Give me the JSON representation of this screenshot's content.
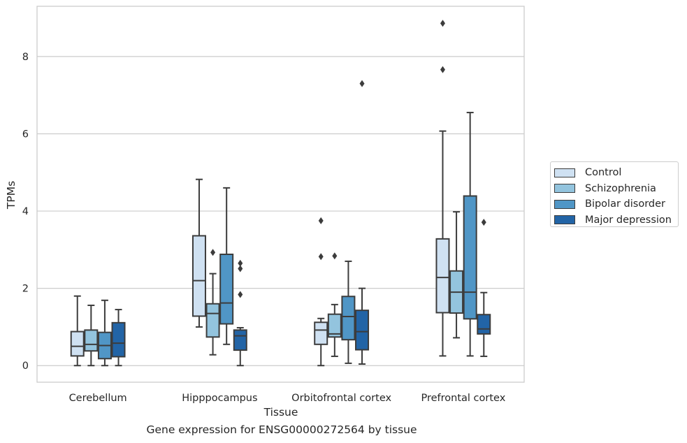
{
  "chart_data": {
    "type": "box",
    "xlabel": "Tissue",
    "ylabel": "TPMs",
    "caption": "Gene expression for ENSG00000272564 by tissue",
    "ylim": [
      -0.43,
      9.3
    ],
    "yticks": [
      0,
      2,
      4,
      6,
      8
    ],
    "grid": true,
    "legend_position": "right",
    "categories": [
      "Cerebellum",
      "Hipppocampus",
      "Orbitofrontal cortex",
      "Prefrontal cortex"
    ],
    "series": [
      {
        "name": "Control",
        "color": "#cfe1f2",
        "boxes": [
          {
            "whislo": 0,
            "q1": 0.25,
            "med": 0.5,
            "q3": 0.88,
            "whishi": 1.8,
            "fliers": []
          },
          {
            "whislo": 1.0,
            "q1": 1.28,
            "med": 2.2,
            "q3": 3.36,
            "whishi": 4.82,
            "fliers": []
          },
          {
            "whislo": 0.0,
            "q1": 0.55,
            "med": 0.92,
            "q3": 1.12,
            "whishi": 1.22,
            "fliers": [
              2.82,
              3.75
            ]
          },
          {
            "whislo": 0.25,
            "q1": 1.37,
            "med": 2.28,
            "q3": 3.28,
            "whishi": 6.07,
            "fliers": [
              7.66,
              8.86
            ]
          }
        ]
      },
      {
        "name": "Schizophrenia",
        "color": "#93c4de",
        "boxes": [
          {
            "whislo": 0,
            "q1": 0.38,
            "med": 0.55,
            "q3": 0.92,
            "whishi": 1.56,
            "fliers": []
          },
          {
            "whislo": 0.28,
            "q1": 0.74,
            "med": 1.35,
            "q3": 1.6,
            "whishi": 2.38,
            "fliers": [
              2.93
            ]
          },
          {
            "whislo": 0.24,
            "q1": 0.74,
            "med": 0.82,
            "q3": 1.33,
            "whishi": 1.58,
            "fliers": [
              2.84
            ]
          },
          {
            "whislo": 0.72,
            "q1": 1.36,
            "med": 1.9,
            "q3": 2.45,
            "whishi": 3.98,
            "fliers": []
          }
        ]
      },
      {
        "name": "Bipolar disorder",
        "color": "#5096c6",
        "boxes": [
          {
            "whislo": 0,
            "q1": 0.18,
            "med": 0.52,
            "q3": 0.86,
            "whishi": 1.69,
            "fliers": []
          },
          {
            "whislo": 0.55,
            "q1": 1.08,
            "med": 1.62,
            "q3": 2.88,
            "whishi": 4.6,
            "fliers": []
          },
          {
            "whislo": 0.06,
            "q1": 0.67,
            "med": 1.27,
            "q3": 1.79,
            "whishi": 2.7,
            "fliers": []
          },
          {
            "whislo": 0.25,
            "q1": 1.21,
            "med": 1.9,
            "q3": 4.39,
            "whishi": 6.55,
            "fliers": []
          }
        ]
      },
      {
        "name": "Major depression",
        "color": "#2264a6",
        "boxes": [
          {
            "whislo": 0,
            "q1": 0.23,
            "med": 0.58,
            "q3": 1.11,
            "whishi": 1.45,
            "fliers": []
          },
          {
            "whislo": 0.0,
            "q1": 0.4,
            "med": 0.77,
            "q3": 0.92,
            "whishi": 0.98,
            "fliers": [
              1.84,
              2.51,
              2.65
            ]
          },
          {
            "whislo": 0.04,
            "q1": 0.41,
            "med": 0.88,
            "q3": 1.43,
            "whishi": 2.0,
            "fliers": [
              7.3
            ]
          },
          {
            "whislo": 0.24,
            "q1": 0.82,
            "med": 0.95,
            "q3": 1.32,
            "whishi": 1.89,
            "fliers": [
              3.71
            ]
          }
        ]
      }
    ]
  }
}
